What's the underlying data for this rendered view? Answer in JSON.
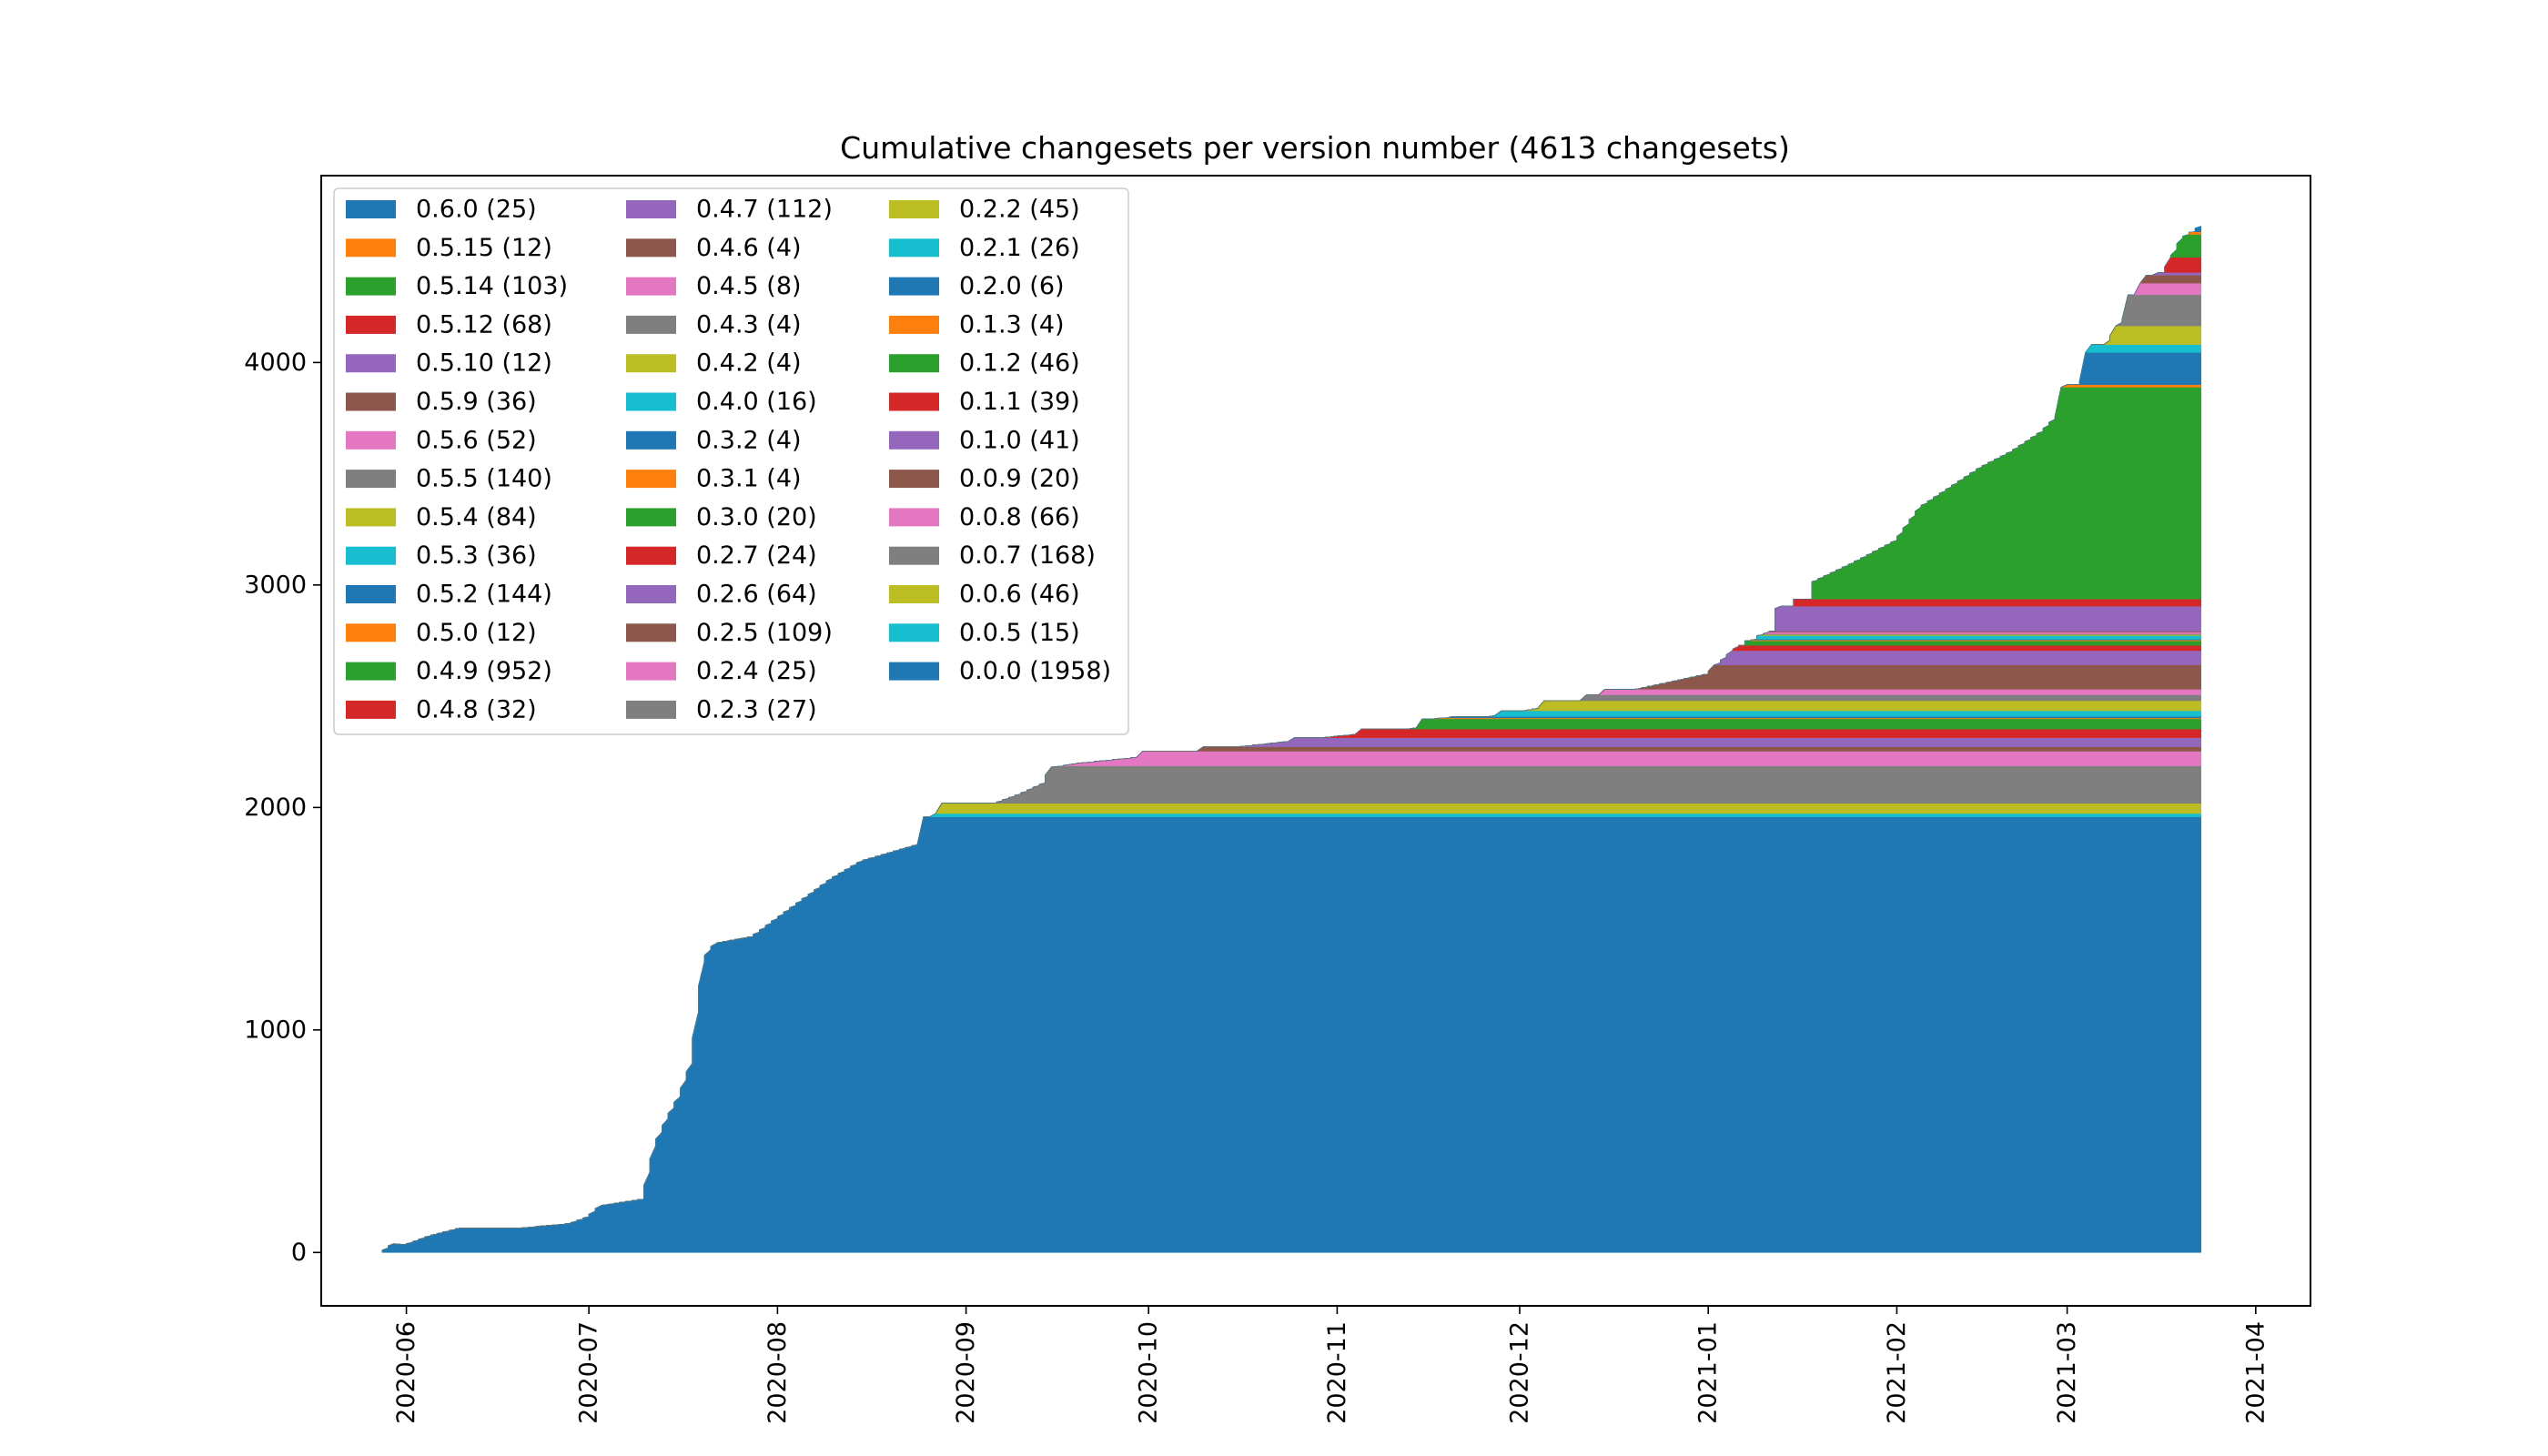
{
  "chart_data": {
    "type": "area",
    "stacked": true,
    "title": "Cumulative changesets per version number (4613 changesets)",
    "xlabel": "",
    "ylabel": "",
    "x_axis_type": "date",
    "xlim": [
      "2020-05-18",
      "2021-04-10"
    ],
    "ylim": [
      -240,
      4840
    ],
    "x_ticks": [
      "2020-06",
      "2020-07",
      "2020-08",
      "2020-09",
      "2020-10",
      "2020-11",
      "2020-12",
      "2021-01",
      "2021-02",
      "2021-03",
      "2021-04"
    ],
    "y_ticks": [
      0,
      1000,
      2000,
      3000,
      4000
    ],
    "grid": false,
    "legend_position": "top-left",
    "legend_columns": 3,
    "total_curve": {
      "x": [
        "2020-05-28",
        "2020-05-30",
        "2020-06-01",
        "2020-06-05",
        "2020-06-10",
        "2020-06-20",
        "2020-06-28",
        "2020-07-01",
        "2020-07-03",
        "2020-07-10",
        "2020-07-12",
        "2020-07-14",
        "2020-07-16",
        "2020-07-18",
        "2020-07-20",
        "2020-07-21",
        "2020-07-22",
        "2020-07-24",
        "2020-07-28",
        "2020-08-01",
        "2020-08-05",
        "2020-08-10",
        "2020-08-15",
        "2020-08-20",
        "2020-08-25",
        "2020-08-27",
        "2020-09-01",
        "2020-09-05",
        "2020-09-10",
        "2020-09-14",
        "2020-09-15",
        "2020-09-20",
        "2020-10-01",
        "2020-10-15",
        "2020-11-01",
        "2020-11-15",
        "2020-12-01",
        "2020-12-15",
        "2021-01-01",
        "2021-01-05",
        "2021-01-10",
        "2021-01-15",
        "2021-01-25",
        "2021-02-01",
        "2021-02-05",
        "2021-02-10",
        "2021-02-15",
        "2021-02-20",
        "2021-02-25",
        "2021-03-01",
        "2021-03-05",
        "2021-03-10",
        "2021-03-15",
        "2021-03-20",
        "2021-03-23"
      ],
      "y": [
        0,
        40,
        35,
        75,
        110,
        110,
        130,
        160,
        210,
        240,
        480,
        600,
        700,
        850,
        1310,
        1360,
        1390,
        1400,
        1420,
        1500,
        1580,
        1680,
        1760,
        1800,
        1840,
        1880,
        1980,
        2010,
        2060,
        2110,
        2180,
        2200,
        2230,
        2270,
        2320,
        2360,
        2430,
        2500,
        2600,
        2700,
        2820,
        2970,
        3100,
        3200,
        3350,
        3440,
        3530,
        3600,
        3690,
        3800,
        3980,
        4180,
        4300,
        4560,
        4613
      ]
    },
    "series": [
      {
        "name": "0.6.0 (25)",
        "color": "#1f77b4"
      },
      {
        "name": "0.5.15 (12)",
        "color": "#ff7f0e"
      },
      {
        "name": "0.5.14 (103)",
        "color": "#2ca02c"
      },
      {
        "name": "0.5.12 (68)",
        "color": "#d62728"
      },
      {
        "name": "0.5.10 (12)",
        "color": "#9467bd"
      },
      {
        "name": "0.5.9 (36)",
        "color": "#8c564b"
      },
      {
        "name": "0.5.6 (52)",
        "color": "#e377c2"
      },
      {
        "name": "0.5.5 (140)",
        "color": "#7f7f7f"
      },
      {
        "name": "0.5.4 (84)",
        "color": "#bcbd22"
      },
      {
        "name": "0.5.3 (36)",
        "color": "#17becf"
      },
      {
        "name": "0.5.2 (144)",
        "color": "#1f77b4"
      },
      {
        "name": "0.5.0 (12)",
        "color": "#ff7f0e"
      },
      {
        "name": "0.4.9 (952)",
        "color": "#2ca02c"
      },
      {
        "name": "0.4.8 (32)",
        "color": "#d62728"
      },
      {
        "name": "0.4.7 (112)",
        "color": "#9467bd"
      },
      {
        "name": "0.4.6 (4)",
        "color": "#8c564b"
      },
      {
        "name": "0.4.5 (8)",
        "color": "#e377c2"
      },
      {
        "name": "0.4.3 (4)",
        "color": "#7f7f7f"
      },
      {
        "name": "0.4.2 (4)",
        "color": "#bcbd22"
      },
      {
        "name": "0.4.0 (16)",
        "color": "#17becf"
      },
      {
        "name": "0.3.2 (4)",
        "color": "#1f77b4"
      },
      {
        "name": "0.3.1 (4)",
        "color": "#ff7f0e"
      },
      {
        "name": "0.3.0 (20)",
        "color": "#2ca02c"
      },
      {
        "name": "0.2.7 (24)",
        "color": "#d62728"
      },
      {
        "name": "0.2.6 (64)",
        "color": "#9467bd"
      },
      {
        "name": "0.2.5 (109)",
        "color": "#8c564b"
      },
      {
        "name": "0.2.4 (25)",
        "color": "#e377c2"
      },
      {
        "name": "0.2.3 (27)",
        "color": "#7f7f7f"
      },
      {
        "name": "0.2.2 (45)",
        "color": "#bcbd22"
      },
      {
        "name": "0.2.1 (26)",
        "color": "#17becf"
      },
      {
        "name": "0.2.0 (6)",
        "color": "#1f77b4"
      },
      {
        "name": "0.1.3 (4)",
        "color": "#ff7f0e"
      },
      {
        "name": "0.1.2 (46)",
        "color": "#2ca02c"
      },
      {
        "name": "0.1.1 (39)",
        "color": "#d62728"
      },
      {
        "name": "0.1.0 (41)",
        "color": "#9467bd"
      },
      {
        "name": "0.0.9 (20)",
        "color": "#8c564b"
      },
      {
        "name": "0.0.8 (66)",
        "color": "#e377c2"
      },
      {
        "name": "0.0.7 (168)",
        "color": "#7f7f7f"
      },
      {
        "name": "0.0.6 (46)",
        "color": "#bcbd22"
      },
      {
        "name": "0.0.5 (15)",
        "color": "#17becf"
      },
      {
        "name": "0.0.0 (1958)",
        "color": "#1f77b4"
      }
    ],
    "stack_order_bottom_to_top": [
      "0.0.0 (1958)",
      "0.0.5 (15)",
      "0.0.6 (46)",
      "0.0.7 (168)",
      "0.0.8 (66)",
      "0.0.9 (20)",
      "0.1.0 (41)",
      "0.1.1 (39)",
      "0.1.2 (46)",
      "0.1.3 (4)",
      "0.2.0 (6)",
      "0.2.1 (26)",
      "0.2.2 (45)",
      "0.2.3 (27)",
      "0.2.4 (25)",
      "0.2.5 (109)",
      "0.2.6 (64)",
      "0.2.7 (24)",
      "0.3.0 (20)",
      "0.3.1 (4)",
      "0.3.2 (4)",
      "0.4.0 (16)",
      "0.4.2 (4)",
      "0.4.3 (4)",
      "0.4.5 (8)",
      "0.4.6 (4)",
      "0.4.7 (112)",
      "0.4.8 (32)",
      "0.4.9 (952)",
      "0.5.0 (12)",
      "0.5.2 (144)",
      "0.5.3 (36)",
      "0.5.4 (84)",
      "0.5.5 (140)",
      "0.5.6 (52)",
      "0.5.9 (36)",
      "0.5.10 (12)",
      "0.5.12 (68)",
      "0.5.14 (103)",
      "0.5.15 (12)",
      "0.6.0 (25)"
    ],
    "band_start_dates": {
      "0.0.0 (1958)": "2020-05-28",
      "0.0.5 (15)": "2020-08-25",
      "0.0.6 (46)": "2020-08-27",
      "0.0.7 (168)": "2020-08-28",
      "0.0.8 (66)": "2020-09-17",
      "0.0.9 (20)": "2020-09-30",
      "0.1.0 (41)": "2020-10-10",
      "0.1.1 (39)": "2020-10-25",
      "0.1.2 (46)": "2020-11-05",
      "0.1.3 (4)": "2020-11-15",
      "0.2.0 (6)": "2020-11-18",
      "0.2.1 (26)": "2020-11-20",
      "0.2.2 (45)": "2020-11-28",
      "0.2.3 (27)": "2020-12-05",
      "0.2.4 (25)": "2020-12-12",
      "0.2.5 (109)": "2020-12-15",
      "0.2.6 (64)": "2021-01-02",
      "0.2.7 (24)": "2021-01-05",
      "0.3.0 (20)": "2021-01-07",
      "0.3.1 (4)": "2021-01-08",
      "0.3.2 (4)": "2021-01-09",
      "0.4.0 (16)": "2021-01-09",
      "0.4.2 (4)": "2021-01-10",
      "0.4.3 (4)": "2021-01-10",
      "0.4.5 (8)": "2021-01-11",
      "0.4.6 (4)": "2021-01-11",
      "0.4.7 (112)": "2021-01-12",
      "0.4.8 (32)": "2021-01-15",
      "0.4.9 (952)": "2021-01-18",
      "0.5.0 (12)": "2021-02-28",
      "0.5.2 (144)": "2021-03-01",
      "0.5.3 (36)": "2021-03-04",
      "0.5.4 (84)": "2021-03-05",
      "0.5.5 (140)": "2021-03-09",
      "0.5.6 (52)": "2021-03-11",
      "0.5.9 (36)": "2021-03-13",
      "0.5.10 (12)": "2021-03-14",
      "0.5.12 (68)": "2021-03-16",
      "0.5.14 (103)": "2021-03-18",
      "0.5.15 (12)": "2021-03-21",
      "0.6.0 (25)": "2021-03-22"
    }
  }
}
